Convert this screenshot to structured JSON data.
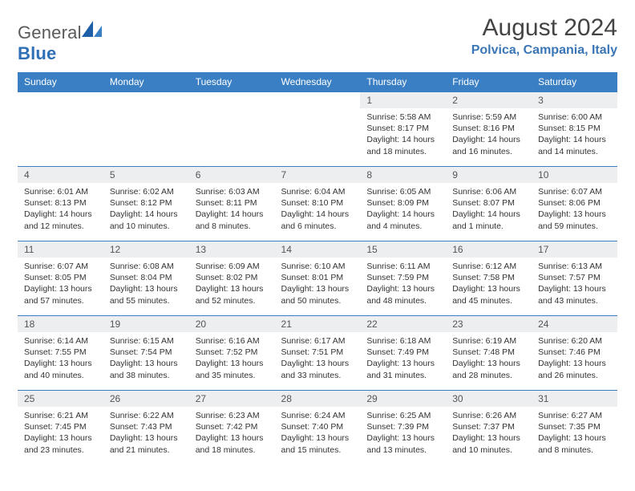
{
  "brand": {
    "part1": "General",
    "part2": "Blue"
  },
  "header": {
    "month": "August 2024",
    "location": "Polvica, Campania, Italy"
  },
  "colors": {
    "header_bg": "#3a7fc4",
    "header_text": "#ffffff",
    "daynum_bg": "#eceef0",
    "rule": "#3a7fc4",
    "accent": "#2f6fb5"
  },
  "columns": [
    "Sunday",
    "Monday",
    "Tuesday",
    "Wednesday",
    "Thursday",
    "Friday",
    "Saturday"
  ],
  "weeks": [
    [
      null,
      null,
      null,
      null,
      {
        "n": "1",
        "sr": "Sunrise: 5:58 AM",
        "ss": "Sunset: 8:17 PM",
        "d1": "Daylight: 14 hours",
        "d2": "and 18 minutes."
      },
      {
        "n": "2",
        "sr": "Sunrise: 5:59 AM",
        "ss": "Sunset: 8:16 PM",
        "d1": "Daylight: 14 hours",
        "d2": "and 16 minutes."
      },
      {
        "n": "3",
        "sr": "Sunrise: 6:00 AM",
        "ss": "Sunset: 8:15 PM",
        "d1": "Daylight: 14 hours",
        "d2": "and 14 minutes."
      }
    ],
    [
      {
        "n": "4",
        "sr": "Sunrise: 6:01 AM",
        "ss": "Sunset: 8:13 PM",
        "d1": "Daylight: 14 hours",
        "d2": "and 12 minutes."
      },
      {
        "n": "5",
        "sr": "Sunrise: 6:02 AM",
        "ss": "Sunset: 8:12 PM",
        "d1": "Daylight: 14 hours",
        "d2": "and 10 minutes."
      },
      {
        "n": "6",
        "sr": "Sunrise: 6:03 AM",
        "ss": "Sunset: 8:11 PM",
        "d1": "Daylight: 14 hours",
        "d2": "and 8 minutes."
      },
      {
        "n": "7",
        "sr": "Sunrise: 6:04 AM",
        "ss": "Sunset: 8:10 PM",
        "d1": "Daylight: 14 hours",
        "d2": "and 6 minutes."
      },
      {
        "n": "8",
        "sr": "Sunrise: 6:05 AM",
        "ss": "Sunset: 8:09 PM",
        "d1": "Daylight: 14 hours",
        "d2": "and 4 minutes."
      },
      {
        "n": "9",
        "sr": "Sunrise: 6:06 AM",
        "ss": "Sunset: 8:07 PM",
        "d1": "Daylight: 14 hours",
        "d2": "and 1 minute."
      },
      {
        "n": "10",
        "sr": "Sunrise: 6:07 AM",
        "ss": "Sunset: 8:06 PM",
        "d1": "Daylight: 13 hours",
        "d2": "and 59 minutes."
      }
    ],
    [
      {
        "n": "11",
        "sr": "Sunrise: 6:07 AM",
        "ss": "Sunset: 8:05 PM",
        "d1": "Daylight: 13 hours",
        "d2": "and 57 minutes."
      },
      {
        "n": "12",
        "sr": "Sunrise: 6:08 AM",
        "ss": "Sunset: 8:04 PM",
        "d1": "Daylight: 13 hours",
        "d2": "and 55 minutes."
      },
      {
        "n": "13",
        "sr": "Sunrise: 6:09 AM",
        "ss": "Sunset: 8:02 PM",
        "d1": "Daylight: 13 hours",
        "d2": "and 52 minutes."
      },
      {
        "n": "14",
        "sr": "Sunrise: 6:10 AM",
        "ss": "Sunset: 8:01 PM",
        "d1": "Daylight: 13 hours",
        "d2": "and 50 minutes."
      },
      {
        "n": "15",
        "sr": "Sunrise: 6:11 AM",
        "ss": "Sunset: 7:59 PM",
        "d1": "Daylight: 13 hours",
        "d2": "and 48 minutes."
      },
      {
        "n": "16",
        "sr": "Sunrise: 6:12 AM",
        "ss": "Sunset: 7:58 PM",
        "d1": "Daylight: 13 hours",
        "d2": "and 45 minutes."
      },
      {
        "n": "17",
        "sr": "Sunrise: 6:13 AM",
        "ss": "Sunset: 7:57 PM",
        "d1": "Daylight: 13 hours",
        "d2": "and 43 minutes."
      }
    ],
    [
      {
        "n": "18",
        "sr": "Sunrise: 6:14 AM",
        "ss": "Sunset: 7:55 PM",
        "d1": "Daylight: 13 hours",
        "d2": "and 40 minutes."
      },
      {
        "n": "19",
        "sr": "Sunrise: 6:15 AM",
        "ss": "Sunset: 7:54 PM",
        "d1": "Daylight: 13 hours",
        "d2": "and 38 minutes."
      },
      {
        "n": "20",
        "sr": "Sunrise: 6:16 AM",
        "ss": "Sunset: 7:52 PM",
        "d1": "Daylight: 13 hours",
        "d2": "and 35 minutes."
      },
      {
        "n": "21",
        "sr": "Sunrise: 6:17 AM",
        "ss": "Sunset: 7:51 PM",
        "d1": "Daylight: 13 hours",
        "d2": "and 33 minutes."
      },
      {
        "n": "22",
        "sr": "Sunrise: 6:18 AM",
        "ss": "Sunset: 7:49 PM",
        "d1": "Daylight: 13 hours",
        "d2": "and 31 minutes."
      },
      {
        "n": "23",
        "sr": "Sunrise: 6:19 AM",
        "ss": "Sunset: 7:48 PM",
        "d1": "Daylight: 13 hours",
        "d2": "and 28 minutes."
      },
      {
        "n": "24",
        "sr": "Sunrise: 6:20 AM",
        "ss": "Sunset: 7:46 PM",
        "d1": "Daylight: 13 hours",
        "d2": "and 26 minutes."
      }
    ],
    [
      {
        "n": "25",
        "sr": "Sunrise: 6:21 AM",
        "ss": "Sunset: 7:45 PM",
        "d1": "Daylight: 13 hours",
        "d2": "and 23 minutes."
      },
      {
        "n": "26",
        "sr": "Sunrise: 6:22 AM",
        "ss": "Sunset: 7:43 PM",
        "d1": "Daylight: 13 hours",
        "d2": "and 21 minutes."
      },
      {
        "n": "27",
        "sr": "Sunrise: 6:23 AM",
        "ss": "Sunset: 7:42 PM",
        "d1": "Daylight: 13 hours",
        "d2": "and 18 minutes."
      },
      {
        "n": "28",
        "sr": "Sunrise: 6:24 AM",
        "ss": "Sunset: 7:40 PM",
        "d1": "Daylight: 13 hours",
        "d2": "and 15 minutes."
      },
      {
        "n": "29",
        "sr": "Sunrise: 6:25 AM",
        "ss": "Sunset: 7:39 PM",
        "d1": "Daylight: 13 hours",
        "d2": "and 13 minutes."
      },
      {
        "n": "30",
        "sr": "Sunrise: 6:26 AM",
        "ss": "Sunset: 7:37 PM",
        "d1": "Daylight: 13 hours",
        "d2": "and 10 minutes."
      },
      {
        "n": "31",
        "sr": "Sunrise: 6:27 AM",
        "ss": "Sunset: 7:35 PM",
        "d1": "Daylight: 13 hours",
        "d2": "and 8 minutes."
      }
    ]
  ]
}
